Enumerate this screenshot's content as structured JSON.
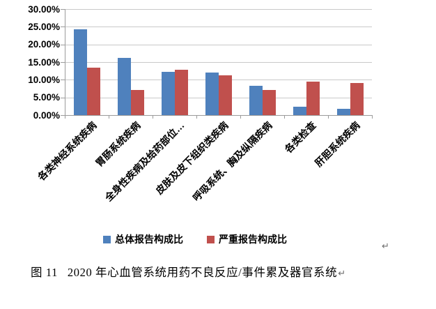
{
  "chart_data": {
    "type": "bar",
    "title": "",
    "categories": [
      "各类神经系统疾病",
      "胃肠系统疾病",
      "全身性疾病及给药部位…",
      "皮肤及皮下组织类疾病",
      "呼吸系统、胸及纵隔疾病",
      "各类检查",
      "肝胆系统疾病"
    ],
    "series": [
      {
        "name": "总体报告构成比",
        "color": "#4F81BD",
        "values": [
          24.3,
          16.2,
          12.2,
          12.0,
          8.2,
          2.3,
          1.8
        ]
      },
      {
        "name": "严重报告构成比",
        "color": "#C0504D",
        "values": [
          13.4,
          7.1,
          12.9,
          11.2,
          7.1,
          9.5,
          9.1
        ]
      }
    ],
    "xlabel": "",
    "ylabel": "",
    "ylim": [
      0,
      30
    ],
    "ytick_step": 5,
    "ytick_labels": [
      "0.00%",
      "5.00%",
      "10.00%",
      "15.00%",
      "20.00%",
      "25.00%",
      "30.00%"
    ],
    "grid": true,
    "legend_position": "bottom",
    "gridline_color": "#c9c9c9",
    "axis_color": "#9b9b9b"
  },
  "caption": {
    "figure_label": "图 11",
    "text": "2020 年心血管系统用药不良反应/事件累及器官系统",
    "paragraph_mark": "↵"
  },
  "stray_paragraph_mark": "↵"
}
